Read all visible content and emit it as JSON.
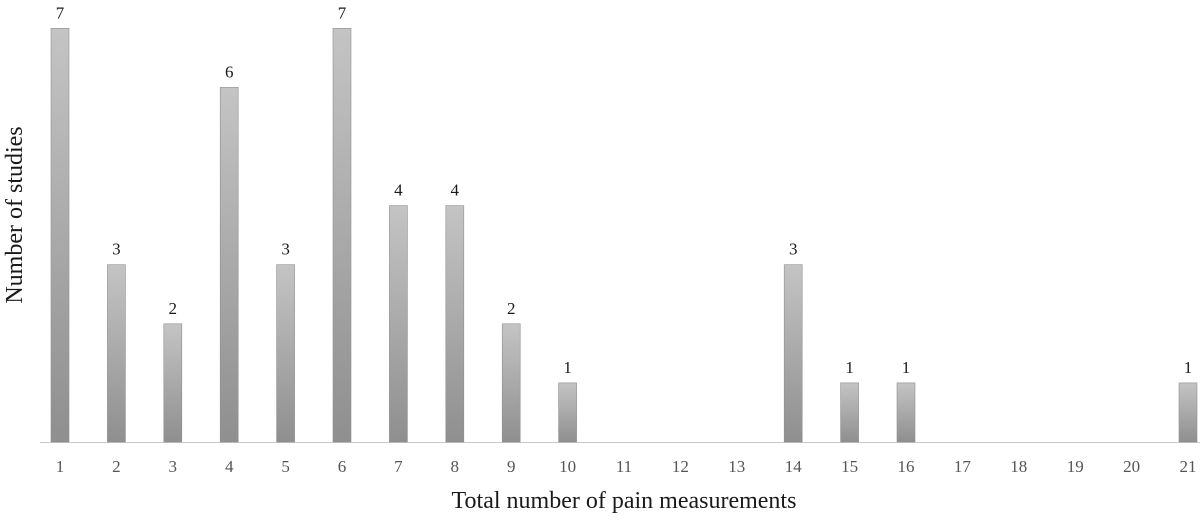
{
  "chart_data": {
    "type": "bar",
    "title": "",
    "xlabel": "Total number of pain measurements",
    "ylabel": "Number of studies",
    "categories": [
      "1",
      "2",
      "3",
      "4",
      "5",
      "6",
      "7",
      "8",
      "9",
      "10",
      "11",
      "12",
      "13",
      "14",
      "15",
      "16",
      "17",
      "18",
      "19",
      "20",
      "21"
    ],
    "values": [
      7,
      3,
      2,
      6,
      3,
      7,
      4,
      4,
      2,
      1,
      0,
      0,
      0,
      3,
      1,
      1,
      0,
      0,
      0,
      0,
      1
    ],
    "ylim": [
      0,
      7
    ],
    "grid": false,
    "legend": "none",
    "data_labels_shown_for_nonzero": true,
    "bar_color": "#a6a6a6",
    "bar_color_light": "#c4c4c4",
    "bar_color_dark": "#8f8f8f",
    "axis_line_color": "#c8c8c8"
  }
}
